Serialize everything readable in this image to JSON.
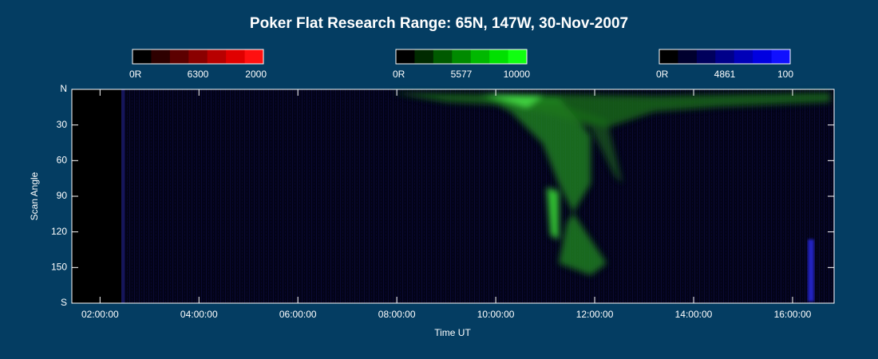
{
  "chart_data": {
    "type": "keogram",
    "title": "Poker Flat Research Range: 65N, 147W, 30-Nov-2007",
    "xlabel": "Time UT",
    "ylabel": "Scan Angle",
    "xlim": [
      1.43,
      16.84
    ],
    "xticks": [
      {
        "value": 2,
        "label": "02:00:00"
      },
      {
        "value": 4,
        "label": "04:00:00"
      },
      {
        "value": 6,
        "label": "06:00:00"
      },
      {
        "value": 8,
        "label": "08:00:00"
      },
      {
        "value": 10,
        "label": "10:00:00"
      },
      {
        "value": 12,
        "label": "12:00:00"
      },
      {
        "value": 14,
        "label": "14:00:00"
      },
      {
        "value": 16,
        "label": "16:00:00"
      }
    ],
    "ylim": [
      0,
      180
    ],
    "yticks": [
      {
        "value": 0,
        "label": "N"
      },
      30,
      60,
      90,
      120,
      150,
      {
        "value": 180,
        "label": "S"
      }
    ],
    "colorbars": [
      {
        "name": "6300",
        "min_label": "0R",
        "max": 2000,
        "colors": [
          "#000000",
          "#2e0000",
          "#5c0000",
          "#8a0000",
          "#b80000",
          "#e00000",
          "#ff1010"
        ]
      },
      {
        "name": "5577",
        "min_label": "0R",
        "max": 10000,
        "colors": [
          "#000000",
          "#002a00",
          "#005a00",
          "#008a00",
          "#00b800",
          "#00e000",
          "#10ff10"
        ]
      },
      {
        "name": "4861",
        "min_label": "0R",
        "max": 100,
        "colors": [
          "#000000",
          "#00002e",
          "#00005c",
          "#00008a",
          "#0000b8",
          "#0000e0",
          "#1010ff"
        ]
      }
    ]
  }
}
